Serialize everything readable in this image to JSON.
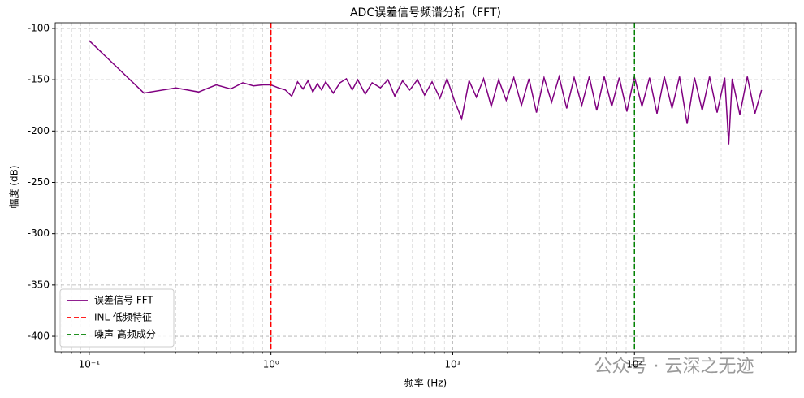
{
  "chart_data": {
    "type": "line",
    "title": "ADC误差信号频谱分析（FFT)",
    "x_label": "频率 (Hz)",
    "y_label": "幅度 (dB)",
    "x": [
      0.1,
      0.2,
      0.3,
      0.4,
      0.5,
      0.6,
      0.7,
      0.8,
      0.9,
      1.0,
      1.1,
      1.2,
      1.3,
      1.4,
      1.5,
      1.6,
      1.7,
      1.8,
      1.9,
      2.0,
      2.2,
      2.4,
      2.6,
      2.8,
      3.0,
      3.3,
      3.6,
      4.0,
      4.4,
      4.8,
      5.3,
      5.8,
      6.4,
      7.0,
      7.7,
      8.5,
      9.3,
      10.2,
      11.2,
      12.3,
      13.5,
      14.8,
      16.3,
      17.9,
      19.7,
      21.7,
      23.9,
      26.3,
      28.9,
      31.8,
      35,
      38.5,
      42.4,
      46.6,
      51.3,
      56.4,
      62,
      68.2,
      75,
      82.5,
      90.8,
      99.9,
      110,
      121,
      133,
      146,
      161,
      177,
      195,
      214,
      236,
      259,
      285,
      314,
      330,
      345,
      380,
      418,
      460,
      500
    ],
    "series": [
      {
        "name": "误差信号 FFT",
        "color": "#800080",
        "values": [
          -112,
          -163,
          -158,
          -162,
          -155,
          -159,
          -153,
          -156,
          -155,
          -155,
          -158,
          -160,
          -166,
          -152,
          -159,
          -151,
          -162,
          -154,
          -160,
          -152,
          -163,
          -153,
          -149,
          -160,
          -150,
          -164,
          -153,
          -158,
          -150,
          -166,
          -151,
          -160,
          -150,
          -165,
          -152,
          -168,
          -149,
          -170,
          -188,
          -151,
          -167,
          -149,
          -176,
          -150,
          -170,
          -148,
          -175,
          -149,
          -182,
          -148,
          -172,
          -147,
          -178,
          -148,
          -175,
          -147,
          -180,
          -147,
          -176,
          -148,
          -181,
          -147,
          -176,
          -148,
          -183,
          -147,
          -178,
          -147,
          -193,
          -148,
          -180,
          -147,
          -182,
          -148,
          -213,
          -149,
          -184,
          -147,
          -183,
          -160
        ]
      }
    ],
    "vlines": [
      {
        "name": "INL 低频特征",
        "color": "#ff0000",
        "x": 1
      },
      {
        "name": "噪声 高频成分",
        "color": "#008000",
        "x": 100
      }
    ],
    "xscale": "log",
    "xlim": [
      0.065,
      773
    ],
    "ylim": [
      -415,
      -94.5
    ],
    "xticks": [
      {
        "value": 0.1,
        "label": "10⁻¹"
      },
      {
        "value": 1,
        "label": "10⁰"
      },
      {
        "value": 10,
        "label": "10¹"
      },
      {
        "value": 100,
        "label": "10²"
      }
    ],
    "xminor_ticks": [
      0.07,
      0.08,
      0.09,
      0.2,
      0.3,
      0.4,
      0.5,
      0.6,
      0.7,
      0.8,
      0.9,
      2,
      3,
      4,
      5,
      6,
      7,
      8,
      9,
      20,
      30,
      40,
      50,
      60,
      70,
      80,
      90,
      200,
      300,
      400,
      500,
      600,
      700
    ],
    "yticks": [
      -100,
      -150,
      -200,
      -250,
      -300,
      -350,
      -400
    ],
    "grid": true,
    "legend": "lower left",
    "watermark": "公众号 · 云深之无迹"
  }
}
